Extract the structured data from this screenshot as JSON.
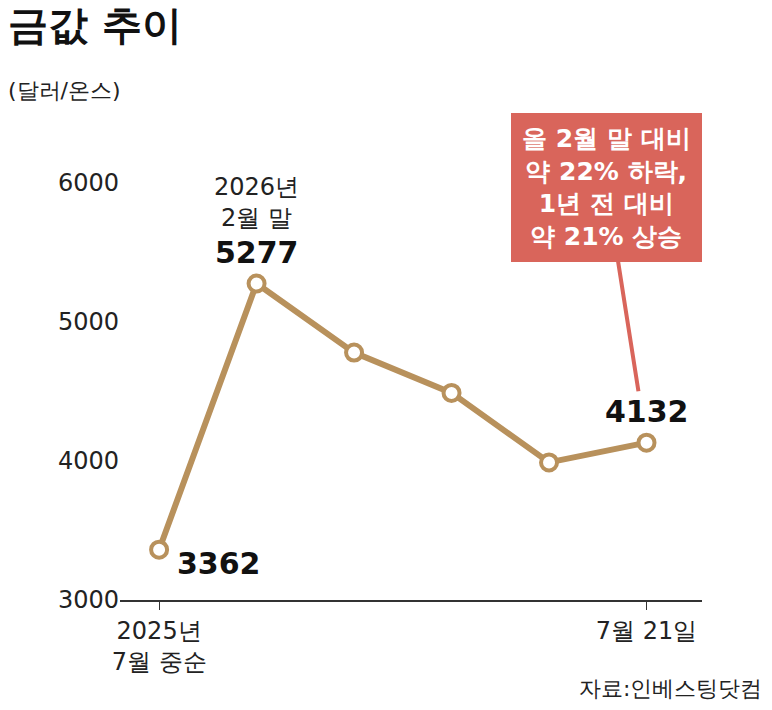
{
  "chart_data": {
    "type": "line",
    "title": "금값 추이",
    "y_label": "(달러/온스)",
    "source": "자료:인베스팅닷컴",
    "categories": [
      "2025년\n7월 중순",
      null,
      null,
      null,
      null,
      "7월 21일"
    ],
    "values": [
      3362,
      5277,
      4780,
      4490,
      3990,
      4132
    ],
    "value_labels": [
      "3362",
      "5277",
      null,
      null,
      null,
      "4132"
    ],
    "annotations": [
      {
        "index": 1,
        "text": "2026년\n2월 말"
      },
      {
        "index": 5,
        "text": "올 2월 말 대비\n약 22% 하락,\n1년 전 대비\n약 21% 상승"
      }
    ],
    "color": "#b8915c",
    "marker": "circle",
    "ylim": [
      3000,
      6000
    ],
    "yticks": [
      3000,
      4000,
      5000,
      6000
    ],
    "grid": false
  }
}
